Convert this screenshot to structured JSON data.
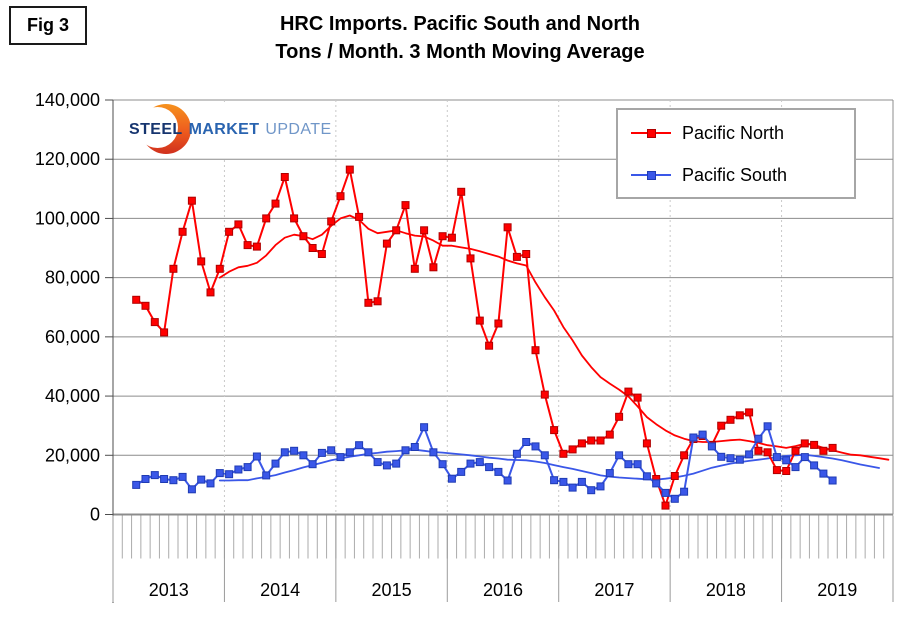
{
  "fig_label": "Fig 3",
  "title": {
    "line1": "HRC Imports. Pacific South and North",
    "line2": "Tons / Month. 3 Month Moving Average"
  },
  "logo": {
    "steel": "STEEL",
    "market": "MARKET",
    "update": "UPDATE",
    "colors": {
      "orange_top": "#F6921E",
      "red_bottom": "#D93A1E"
    }
  },
  "legend": [
    {
      "label": "Pacific North",
      "color": "#FF0000",
      "marker_border": "#B00000"
    },
    {
      "label": "Pacific South",
      "color": "#3A57E8",
      "marker_border": "#1F3BB3"
    }
  ],
  "y_axis": {
    "tick_labels": [
      "140,000",
      "120,000",
      "100,000",
      "80,000",
      "60,000",
      "40,000",
      "20,000",
      "0"
    ],
    "min": 0,
    "max": 140000,
    "step": 20000
  },
  "x_axis": {
    "years": [
      "2013",
      "2014",
      "2015",
      "2016",
      "2017",
      "2018",
      "2019"
    ]
  },
  "chart_data": {
    "type": "line",
    "title": "HRC Imports. Pacific South and North — Tons / Month. 3 Month Moving Average",
    "unit": "tons per month",
    "x_frequency": "monthly",
    "x_range_shown": [
      "2013-01",
      "2019-12"
    ],
    "ylim": [
      0,
      140000
    ],
    "grid": true,
    "legend_position": "top-right",
    "series": [
      {
        "name": "Pacific North",
        "color": "#FF0000",
        "marker": "square",
        "x_start": "2013-03",
        "values": [
          72500,
          70500,
          65000,
          61500,
          83000,
          95500,
          106000,
          85500,
          75000,
          83000,
          95500,
          98000,
          91000,
          90500,
          100000,
          105000,
          114000,
          100000,
          94000,
          90000,
          88000,
          99000,
          107500,
          116500,
          100500,
          71500,
          72000,
          91500,
          96000,
          104500,
          83000,
          96000,
          83500,
          94000,
          93500,
          109000,
          86500,
          65500,
          57000,
          64500,
          97000,
          87000,
          88000,
          55500,
          40500,
          28500,
          20500,
          22000,
          24000,
          25000,
          25000,
          27000,
          33000,
          41500,
          39500,
          24000,
          12000,
          3000,
          13000,
          20000,
          25500,
          26500,
          23500,
          30000,
          32000,
          33500,
          34500,
          21500,
          21000,
          15000,
          14700,
          21500,
          24000,
          23500,
          21500,
          22500
        ]
      },
      {
        "name": "Pacific South",
        "color": "#3A57E8",
        "marker": "square",
        "x_start": "2013-03",
        "values": [
          10000,
          12000,
          13300,
          12000,
          11600,
          12700,
          8500,
          11800,
          10500,
          14000,
          13600,
          15200,
          16000,
          19600,
          13200,
          17200,
          21000,
          21500,
          20000,
          17000,
          20800,
          21700,
          19400,
          21000,
          23400,
          21000,
          17700,
          16600,
          17200,
          21700,
          22800,
          29500,
          21000,
          17000,
          12100,
          14400,
          17200,
          17700,
          16000,
          14400,
          11500,
          20500,
          24500,
          23000,
          20000,
          11600,
          11000,
          9100,
          11000,
          8200,
          9500,
          14000,
          20000,
          17000,
          17000,
          12900,
          10500,
          7300,
          5300,
          7700,
          26000,
          27000,
          23000,
          19500,
          19000,
          18500,
          20300,
          25600,
          29800,
          19400,
          18300,
          16000,
          19400,
          16600,
          13800,
          11500
        ]
      }
    ],
    "trend_lines": [
      {
        "name": "Pacific North smoothed trend",
        "color": "#FF0000",
        "x_start": "2013-12",
        "values": [
          80000,
          82000,
          83500,
          84000,
          85000,
          87500,
          91000,
          93500,
          94500,
          94000,
          93000,
          94500,
          97500,
          100000,
          101000,
          99500,
          96500,
          95000,
          95500,
          96000,
          95000,
          94200,
          93900,
          92500,
          90800,
          90800,
          90200,
          89700,
          88900,
          88000,
          87100,
          85800,
          84800,
          84100,
          78400,
          73400,
          68900,
          63300,
          58800,
          53700,
          49800,
          46400,
          44200,
          42200,
          39900,
          36500,
          32900,
          30500,
          28400,
          26700,
          25600,
          24800,
          24500,
          24500,
          24800,
          25100,
          25300,
          24800,
          24200,
          23400,
          23000,
          22500,
          23100,
          23900,
          23500,
          22500,
          21700,
          20900,
          20200,
          20000,
          19500,
          19000,
          18500
        ]
      },
      {
        "name": "Pacific South smoothed trend",
        "color": "#3A57E8",
        "x_start": "2013-12",
        "values": [
          11500,
          11500,
          11600,
          11600,
          12200,
          12700,
          13300,
          14200,
          15000,
          15900,
          16700,
          17500,
          18300,
          18900,
          19500,
          20000,
          20500,
          20800,
          21200,
          21400,
          21700,
          21900,
          21500,
          21100,
          20900,
          20600,
          20300,
          20000,
          19600,
          19200,
          18900,
          18500,
          18400,
          18300,
          17900,
          17400,
          16700,
          16000,
          15400,
          14700,
          14000,
          13200,
          12800,
          12500,
          12300,
          12100,
          11900,
          11800,
          12100,
          12500,
          13100,
          13800,
          14800,
          15800,
          16500,
          17200,
          17700,
          18100,
          18500,
          18900,
          19400,
          19800,
          20000,
          20200,
          19800,
          19400,
          18900,
          18300,
          17600,
          16900,
          16300,
          15700
        ]
      }
    ]
  }
}
